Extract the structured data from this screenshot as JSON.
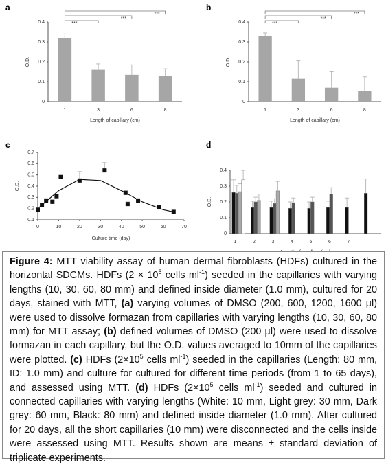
{
  "chart_data": [
    {
      "type": "bar",
      "panel_label": "a",
      "categories": [
        "1",
        "3",
        "6",
        "8"
      ],
      "values": [
        0.32,
        0.16,
        0.135,
        0.13
      ],
      "errors": [
        0.02,
        0.03,
        0.05,
        0.035
      ],
      "color": "#a6a6a6",
      "ylim": [
        0,
        0.4
      ],
      "yticks": [
        0,
        0.1,
        0.2,
        0.3,
        0.4
      ],
      "x_label": "Length of capillary (cm)",
      "y_label": "O.D.",
      "annotations": [
        "***",
        "***",
        "***"
      ]
    },
    {
      "type": "bar",
      "panel_label": "b",
      "categories": [
        "1",
        "3",
        "6",
        "8"
      ],
      "values": [
        0.33,
        0.115,
        0.07,
        0.055
      ],
      "errors": [
        0.015,
        0.09,
        0.08,
        0.07
      ],
      "color": "#a6a6a6",
      "ylim": [
        0,
        0.4
      ],
      "yticks": [
        0,
        0.1,
        0.2,
        0.3,
        0.4
      ],
      "x_label": "Length of capillary (cm)",
      "y_label": "O.D.",
      "annotations": [
        "***",
        "***",
        "***"
      ]
    },
    {
      "type": "scatter",
      "panel_label": "c",
      "x": [
        0,
        2,
        4,
        7,
        9,
        11,
        20,
        32,
        42,
        43,
        48,
        58,
        65
      ],
      "values": [
        0.19,
        0.23,
        0.27,
        0.26,
        0.31,
        0.48,
        0.45,
        0.54,
        0.34,
        0.24,
        0.27,
        0.21,
        0.17
      ],
      "errors": [
        0.02,
        0.02,
        0.02,
        0.02,
        0.02,
        0.02,
        0.08,
        0.07,
        0.02,
        0.02,
        0.02,
        0.02,
        0.02
      ],
      "color": "#111111",
      "fit": {
        "x": [
          0,
          10,
          20,
          30,
          40,
          50,
          60,
          65
        ],
        "y": [
          0.2,
          0.36,
          0.46,
          0.45,
          0.36,
          0.26,
          0.19,
          0.17
        ]
      },
      "xlim": [
        0,
        70
      ],
      "xticks": [
        0,
        10,
        20,
        30,
        40,
        50,
        60,
        70
      ],
      "ylim": [
        0.1,
        0.7
      ],
      "yticks": [
        0.1,
        0.2,
        0.3,
        0.4,
        0.5,
        0.6,
        0.7
      ],
      "x_label": "Culture time (day)",
      "y_label": "O.D."
    },
    {
      "type": "grouped_bar",
      "panel_label": "d",
      "categories": [
        "1",
        "2",
        "3",
        "4",
        "5",
        "6",
        "7",
        null
      ],
      "series": [
        {
          "color": "#111111",
          "values": [
            0.26,
            0.165,
            0.165,
            0.16,
            0.16,
            0.165,
            0.165,
            0.255
          ],
          "errors": [
            0.08,
            0.04,
            0.04,
            0.04,
            0.04,
            0.04,
            0.06,
            0.09
          ]
        },
        {
          "color": "#555555",
          "values": [
            0.255,
            0.2,
            0.19,
            0.195,
            0.2,
            0.25,
            null,
            null
          ],
          "errors": [
            0.05,
            0.03,
            0.03,
            0.03,
            0.03,
            0.04,
            null,
            null
          ]
        },
        {
          "color": "#aaaaaa",
          "values": [
            0.265,
            0.21,
            0.27,
            null,
            null,
            null,
            null,
            null
          ],
          "errors": [
            0.05,
            0.04,
            0.06,
            null,
            null,
            null,
            null,
            null
          ]
        },
        {
          "color": "#ffffff",
          "values": [
            0.34,
            null,
            null,
            null,
            null,
            null,
            null,
            null
          ],
          "errors": [
            0.06,
            null,
            null,
            null,
            null,
            null,
            null,
            null
          ]
        }
      ],
      "ylim": [
        0,
        0.4
      ],
      "yticks": [
        0,
        0.1,
        0.2,
        0.3,
        0.4
      ],
      "x_label": "Length of capillary (cm)",
      "y_label": "O.D."
    }
  ],
  "caption": [
    "Figure 4:",
    " MTT viability assay of human dermal fibroblasts (HDFs) cultured in the horizontal SDCMs. HDFs (2 × 10",
    "5",
    " cells ml",
    "-1",
    ") seeded in the capillaries with varying lengths (10, 30, 60, 80 mm) and defined inside diameter (1.0 mm), cultured for 20 days, stained with MTT, ",
    "(a)",
    " varying volumes of DMSO (200, 600, 1200, 1600 µl) were used to dissolve formazan from capillaries with varying lengths (10, 30, 60, 80 mm) for MTT assay; ",
    "(b)",
    " defined volumes of DMSO (200 µl) were used to dissolve formazan in each capillary, but the O.D. values averaged to 10mm of the capillaries were plotted. ",
    "(c)",
    " HDFs (2×10",
    "5",
    " cells ml",
    "-1",
    ") seeded in the capillaries (Length: 80 mm, ID: 1.0 mm) and culture for cultured for different time periods (from 1 to 65 days), and assessed using MTT. ",
    "(d)",
    " HDFs (2×10",
    "5",
    " cells ml",
    "-1",
    ") seeded and cultured in connected capillaries with varying lengths (White: 10 mm, Light grey: 30 mm, Dark grey: 60 mm, Black: 80 mm) and defined inside diameter (1.0 mm). After cultured for 20 days, all the short capillaries (10 mm) were disconnected and the cells inside were assessed using MTT. Results shown are means ± standard deviation of triplicate experiments."
  ]
}
